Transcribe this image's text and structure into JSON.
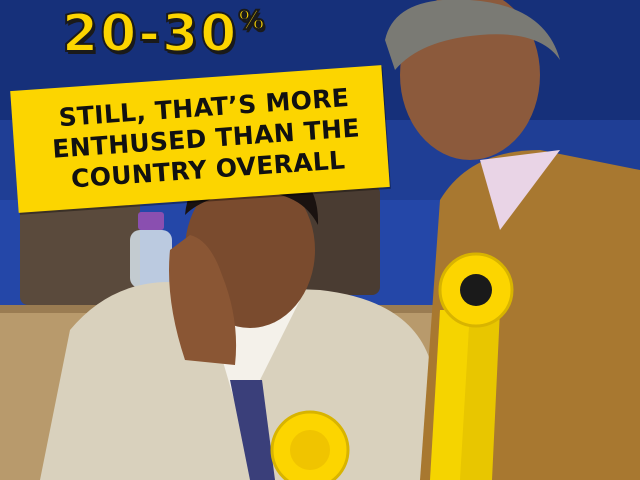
{
  "headline": {
    "number": "20-30",
    "unit": "%"
  },
  "caption": {
    "lines": [
      "STILL, THAT’S MORE",
      "ENTHUSED THAN THE",
      "COUNTRY OVERALL"
    ]
  },
  "colors": {
    "accent_yellow": "#fcd500",
    "background_blue": "#1c3a8c",
    "text_dark": "#111111"
  },
  "icons": [
    "rosette-icon",
    "water-bottle",
    "campaign-rosette"
  ]
}
